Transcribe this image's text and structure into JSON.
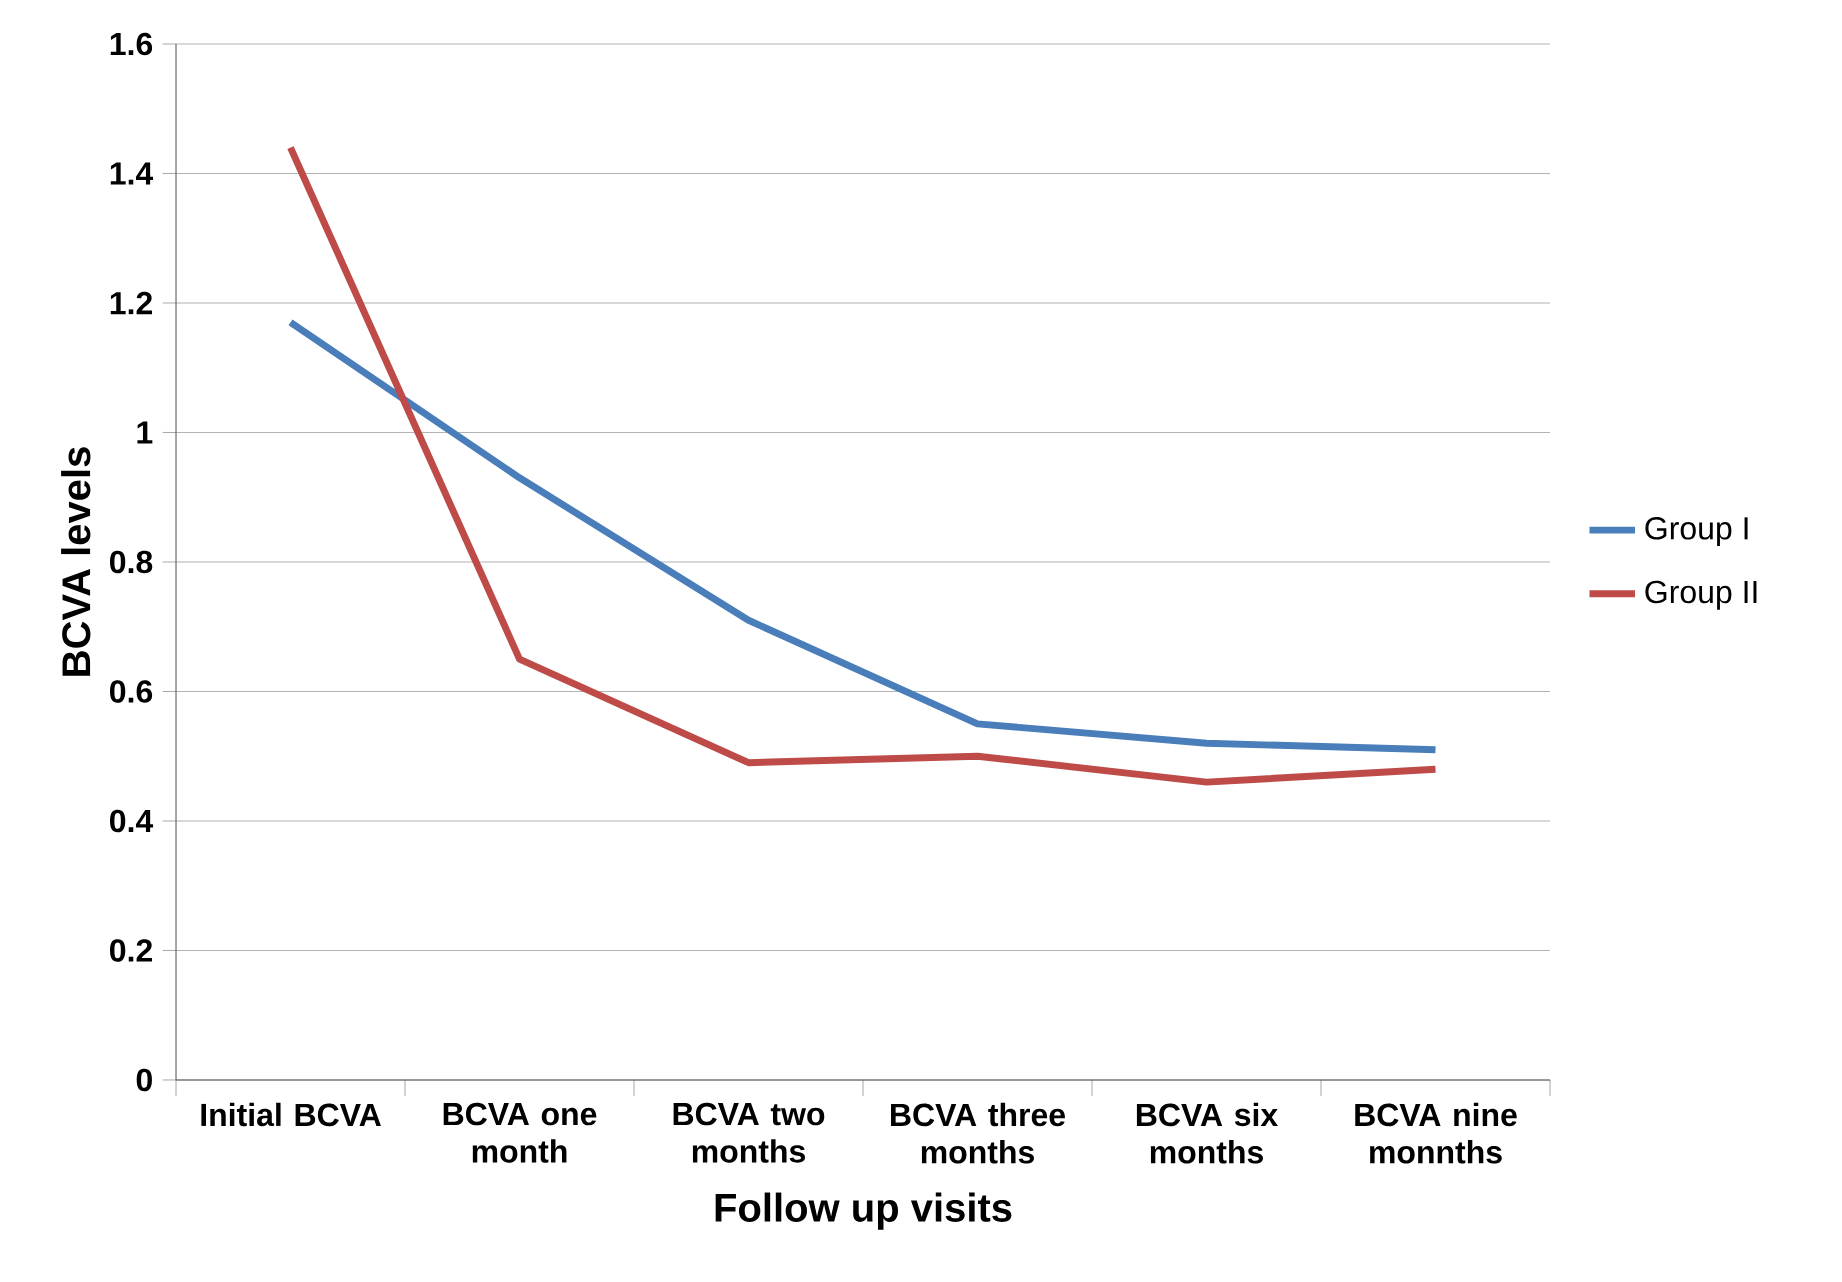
{
  "chart_data": {
    "type": "line",
    "xlabel": "Follow up visits",
    "ylabel": "BCVA  levels",
    "categories": [
      "Initial BCVA",
      "BCVA one month",
      "BCVA two months",
      "BCVA three months",
      "BCVA six months",
      "BCVA nine monnths"
    ],
    "series": [
      {
        "name": "Group I",
        "color": "#4a7ebb",
        "values": [
          1.17,
          0.93,
          0.71,
          0.55,
          0.52,
          0.51
        ]
      },
      {
        "name": "Group II",
        "color": "#be4b48",
        "values": [
          1.44,
          0.65,
          0.49,
          0.5,
          0.46,
          0.48
        ]
      }
    ],
    "ylim": [
      0,
      1.6
    ],
    "yticks": [
      0,
      0.2,
      0.4,
      0.6,
      0.8,
      1,
      1.2,
      1.4,
      1.6
    ],
    "grid": "y",
    "legend": "right",
    "marker": "none"
  }
}
